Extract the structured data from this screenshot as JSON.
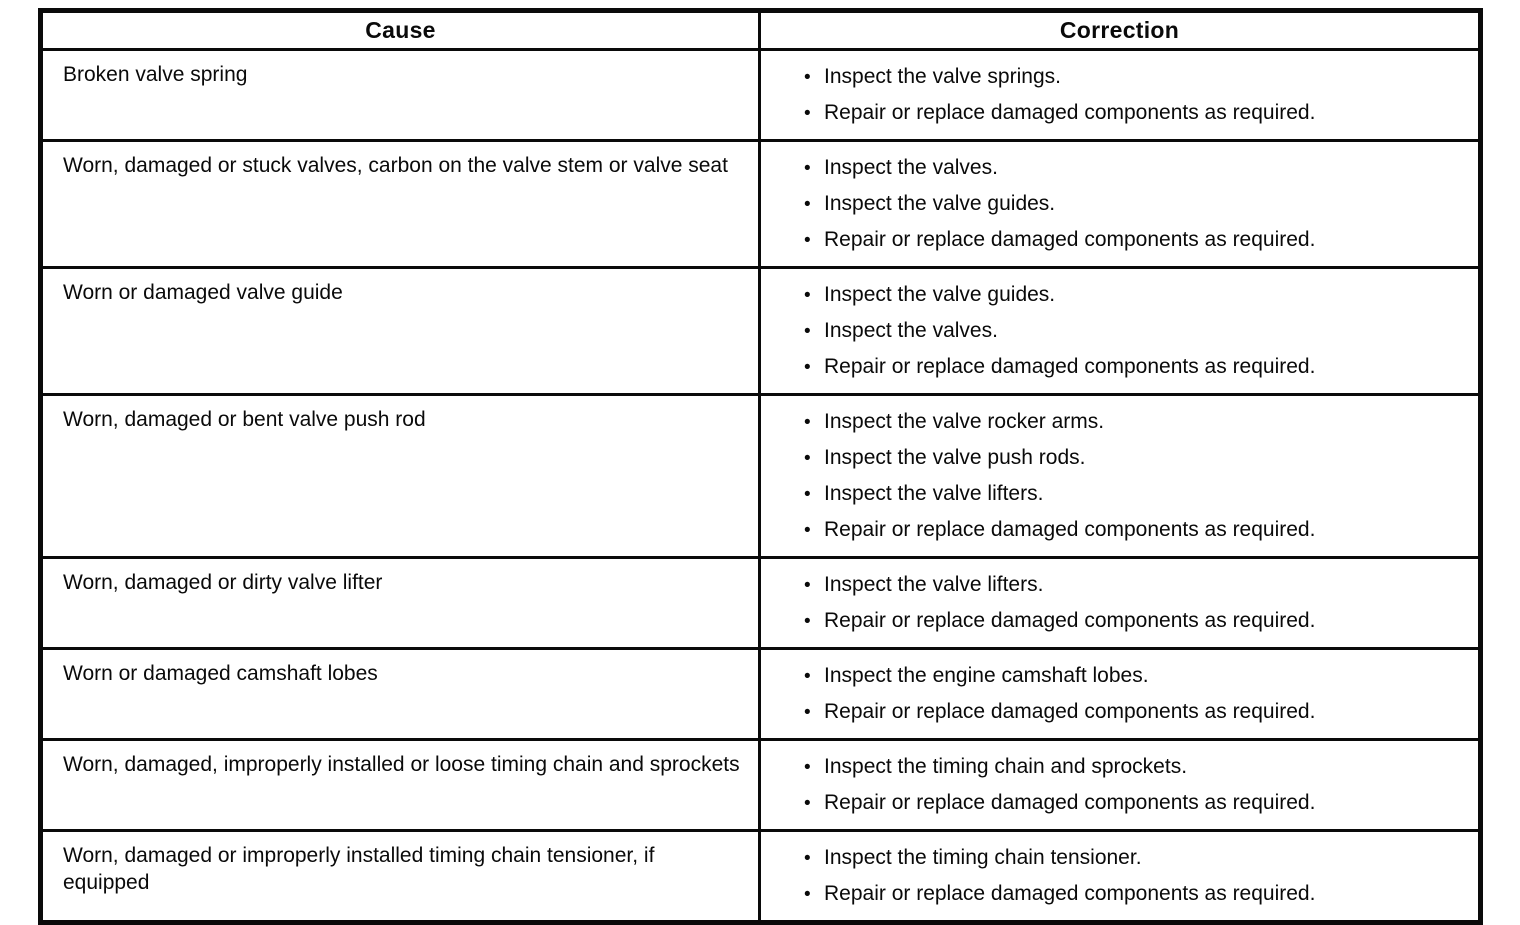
{
  "bullet": "•",
  "table": {
    "headers": {
      "cause": "Cause",
      "correction": "Correction"
    },
    "rows": [
      {
        "cause": "Broken valve spring",
        "corrections": [
          "Inspect the valve springs.",
          "Repair or replace damaged components as required."
        ]
      },
      {
        "cause": "Worn, damaged or stuck valves, carbon on the valve stem or valve seat",
        "corrections": [
          "Inspect the valves.",
          "Inspect the valve guides.",
          "Repair or replace damaged components as required."
        ]
      },
      {
        "cause": "Worn or damaged valve guide",
        "corrections": [
          "Inspect the valve guides.",
          "Inspect the valves.",
          "Repair or replace damaged components as required."
        ]
      },
      {
        "cause": "Worn, damaged or bent valve push rod",
        "corrections": [
          "Inspect the valve rocker arms.",
          "Inspect the valve push rods.",
          "Inspect the valve lifters.",
          "Repair or replace damaged components as required."
        ]
      },
      {
        "cause": "Worn, damaged or dirty valve lifter",
        "corrections": [
          "Inspect the valve lifters.",
          "Repair or replace damaged components as required."
        ]
      },
      {
        "cause": "Worn or damaged camshaft lobes",
        "corrections": [
          "Inspect the engine camshaft lobes.",
          "Repair or replace damaged components as required."
        ]
      },
      {
        "cause": "Worn, damaged, improperly installed or loose timing chain and sprockets",
        "corrections": [
          "Inspect the timing chain and sprockets.",
          "Repair or replace damaged components as required."
        ]
      },
      {
        "cause": "Worn, damaged or improperly installed timing chain tensioner, if equipped",
        "corrections": [
          "Inspect the timing chain tensioner.",
          "Repair or replace damaged components as required."
        ]
      }
    ]
  }
}
